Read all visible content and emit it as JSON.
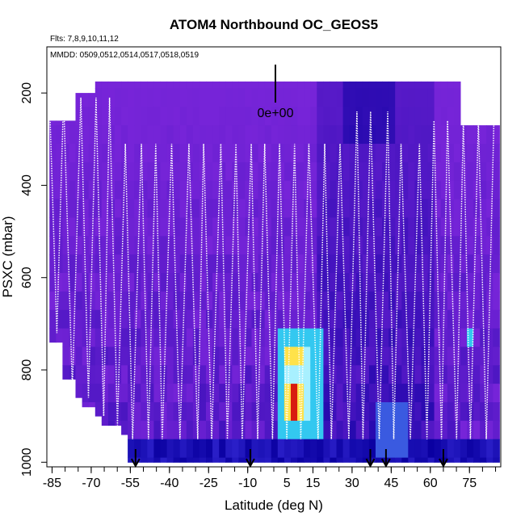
{
  "chart_data": {
    "type": "heatmap",
    "title": "ATOM4 Northbound OC_GEOS5",
    "flights_note": "Flts: 7,8,9,10,11,12",
    "dates_note": "MMDD: 0509,0512,0514,0517,0518,0519",
    "xlabel": "Latitude (deg N)",
    "ylabel": "PSXC (mbar)",
    "xlim": [
      -87,
      87
    ],
    "ylim": [
      1010,
      100
    ],
    "x_ticks": [
      -85,
      -70,
      -55,
      -40,
      -25,
      -10,
      5,
      15,
      30,
      45,
      60,
      75
    ],
    "x_tick_labels": [
      "-85",
      "-70",
      "-55",
      "-40",
      "-25",
      "-10",
      "5",
      "15",
      "30",
      "45",
      "60",
      "75"
    ],
    "y_ticks": [
      200,
      400,
      600,
      800,
      1000
    ],
    "y_tick_labels": [
      "200",
      "400",
      "600",
      "800",
      "1000"
    ],
    "scale_label": "0e+00",
    "arrow_latitudes": [
      -53,
      -9,
      37,
      43,
      65
    ],
    "colors": {
      "background_fill": "#8a2be2",
      "deep_blue": "#0a00a0",
      "cyan": "#33c8f0",
      "yellow": "#ffe24a",
      "red": "#d81c10",
      "flight_track": "#ffffff"
    }
  }
}
